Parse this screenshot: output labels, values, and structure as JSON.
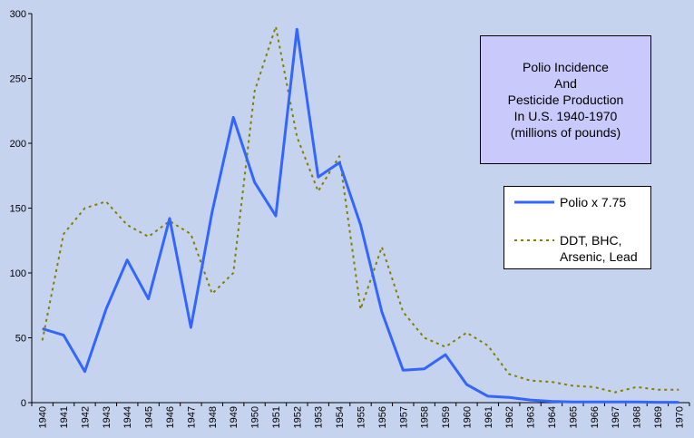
{
  "chart_data": {
    "type": "line",
    "title_lines": [
      "Polio Incidence",
      "And",
      "Pesticide Production",
      "In U.S. 1940-1970",
      "(millions of pounds)"
    ],
    "x": [
      1940,
      1941,
      1942,
      1943,
      1944,
      1945,
      1946,
      1947,
      1948,
      1949,
      1950,
      1951,
      1952,
      1953,
      1954,
      1955,
      1956,
      1957,
      1958,
      1959,
      1960,
      1961,
      1962,
      1963,
      1964,
      1965,
      1966,
      1967,
      1968,
      1969,
      1970
    ],
    "x_tick_labels": [
      "1940",
      "1941",
      "1942",
      "1943",
      "1944",
      "1945",
      "1946",
      "1947",
      "1948",
      "1949",
      "1950",
      "1951",
      "1952",
      "1953",
      "1954",
      "1955",
      "1956",
      "1957",
      "1958",
      "1959",
      "1960",
      "1961",
      "1962",
      "1963",
      "1964",
      "1965",
      "1966",
      "1967",
      "1968",
      "1969",
      "1970"
    ],
    "y_ticks": [
      0,
      50,
      100,
      150,
      200,
      250,
      300
    ],
    "ylim": [
      0,
      300
    ],
    "grid": false,
    "legend_position": "right",
    "series": [
      {
        "name": "Polio x 7.75",
        "style": "solid",
        "color": "#3366ff",
        "values": [
          57,
          52,
          24,
          72,
          110,
          80,
          142,
          58,
          147,
          220,
          170,
          144,
          288,
          174,
          185,
          137,
          70,
          25,
          26,
          37,
          14,
          5,
          4,
          2,
          1,
          0.5,
          0.5,
          0.5,
          0.5,
          0.3,
          0.3
        ]
      },
      {
        "name": "DDT, BHC, Arsenic, Lead",
        "name_lines": [
          "DDT, BHC,",
          "Arsenic, Lead"
        ],
        "style": "dotted",
        "color": "#808000",
        "values": [
          48,
          130,
          150,
          155,
          137,
          128,
          140,
          130,
          84,
          100,
          240,
          290,
          205,
          163,
          190,
          72,
          120,
          70,
          50,
          43,
          54,
          44,
          22,
          17,
          16,
          13,
          12,
          8,
          12,
          10,
          10
        ]
      }
    ]
  }
}
